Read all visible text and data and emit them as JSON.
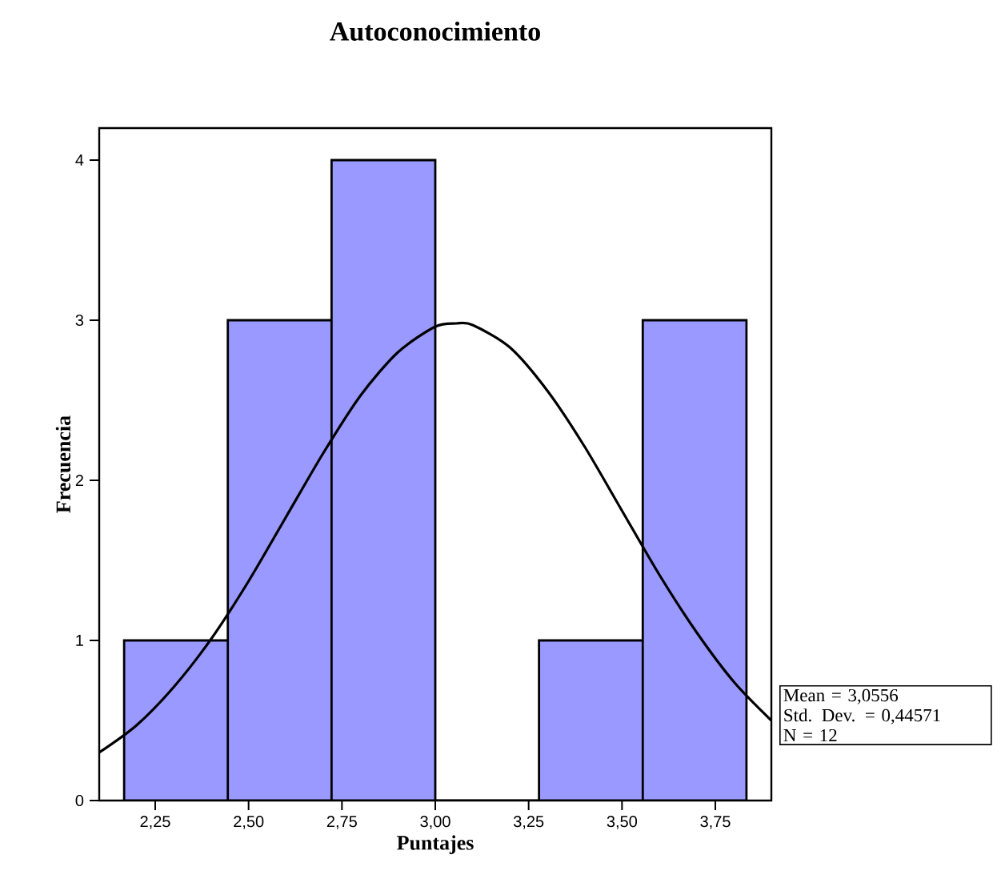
{
  "chart_data": {
    "type": "histogram",
    "title": "Autoconocimiento",
    "xlabel": "Puntajes",
    "ylabel": "Frecuencia",
    "bins": [
      2.1667,
      2.4444,
      2.7222,
      3.0,
      3.2778,
      3.5556,
      3.8333
    ],
    "values": [
      1,
      3,
      4,
      0,
      1,
      3
    ],
    "color": "#9999ff",
    "series": [
      {
        "type": "line",
        "color": "#000000",
        "x": [
          2.1,
          2.2,
          2.3,
          2.4,
          2.5,
          2.6,
          2.7,
          2.8,
          2.9,
          3.0,
          3.0556,
          3.1,
          3.2,
          3.3,
          3.4,
          3.5,
          3.6,
          3.7,
          3.8,
          3.9
        ],
        "values": [
          0.3,
          0.47,
          0.71,
          1.01,
          1.37,
          1.77,
          2.17,
          2.53,
          2.8,
          2.96,
          2.98,
          2.97,
          2.83,
          2.56,
          2.21,
          1.81,
          1.41,
          1.05,
          0.74,
          0.5
        ]
      }
    ],
    "xlim": [
      2.1,
      3.9
    ],
    "ylim": [
      0,
      4.2
    ],
    "xticks": [
      {
        "value": 2.25,
        "label": "2,25"
      },
      {
        "value": 2.5,
        "label": "2,50"
      },
      {
        "value": 2.75,
        "label": "2,75"
      },
      {
        "value": 3.0,
        "label": "3,00"
      },
      {
        "value": 3.25,
        "label": "3,25"
      },
      {
        "value": 3.5,
        "label": "3,50"
      },
      {
        "value": 3.75,
        "label": "3,75"
      }
    ],
    "yticks": [
      0,
      1,
      2,
      3,
      4
    ],
    "annotations": [
      "Mean = 3,0556",
      "Std. Dev. = 0,44571",
      "N = 12"
    ]
  }
}
